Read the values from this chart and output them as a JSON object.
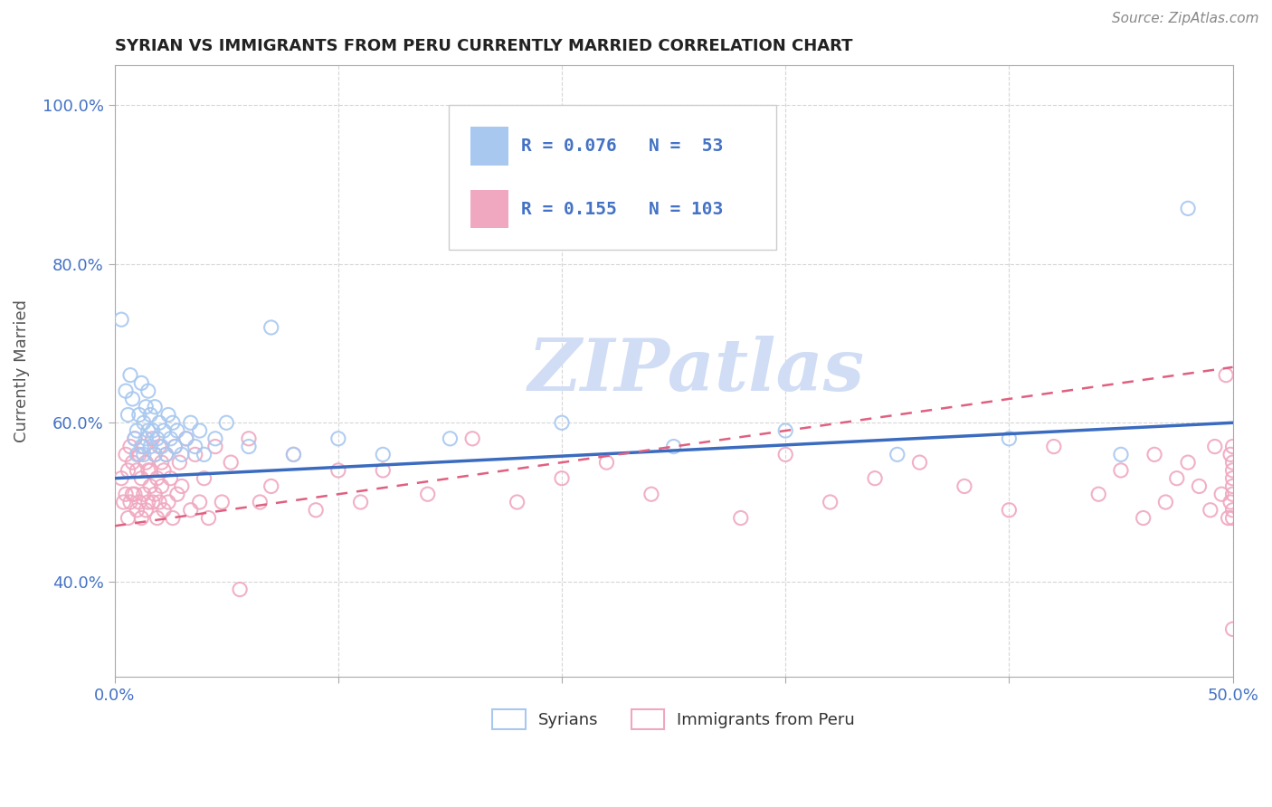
{
  "title": "SYRIAN VS IMMIGRANTS FROM PERU CURRENTLY MARRIED CORRELATION CHART",
  "source": "Source: ZipAtlas.com",
  "ylabel_label": "Currently Married",
  "xlim": [
    0.0,
    0.5
  ],
  "ylim": [
    0.28,
    1.05
  ],
  "yticks": [
    0.4,
    0.6,
    0.8,
    1.0
  ],
  "ytick_labels": [
    "40.0%",
    "60.0%",
    "80.0%",
    "100.0%"
  ],
  "xticks": [
    0.0,
    0.1,
    0.2,
    0.3,
    0.4,
    0.5
  ],
  "xtick_labels": [
    "0.0%",
    "",
    "",
    "",
    "",
    "50.0%"
  ],
  "R_syrian": 0.076,
  "N_syrian": 53,
  "R_peru": 0.155,
  "N_peru": 103,
  "color_syrian": "#a8c8f0",
  "color_peru": "#f0a8c0",
  "color_line_blue": "#3a6bbf",
  "color_line_pink": "#e06080",
  "color_text_blue": "#4472c4",
  "watermark": "ZIPatlas",
  "watermark_color": "#d0ddf5",
  "legend_label_syrian": "Syrians",
  "legend_label_peru": "Immigrants from Peru",
  "trend_blue_x0": 0.0,
  "trend_blue_y0": 0.53,
  "trend_blue_x1": 0.5,
  "trend_blue_y1": 0.6,
  "trend_pink_x0": 0.0,
  "trend_pink_y0": 0.47,
  "trend_pink_x1": 0.5,
  "trend_pink_y1": 0.67,
  "syrian_x": [
    0.003,
    0.005,
    0.006,
    0.007,
    0.008,
    0.009,
    0.01,
    0.01,
    0.011,
    0.012,
    0.012,
    0.013,
    0.013,
    0.014,
    0.014,
    0.015,
    0.015,
    0.016,
    0.016,
    0.017,
    0.018,
    0.018,
    0.019,
    0.02,
    0.021,
    0.022,
    0.023,
    0.024,
    0.025,
    0.026,
    0.027,
    0.028,
    0.03,
    0.032,
    0.034,
    0.036,
    0.038,
    0.04,
    0.045,
    0.05,
    0.06,
    0.07,
    0.08,
    0.1,
    0.12,
    0.15,
    0.2,
    0.25,
    0.3,
    0.35,
    0.4,
    0.45,
    0.48
  ],
  "syrian_y": [
    0.73,
    0.64,
    0.61,
    0.66,
    0.63,
    0.58,
    0.59,
    0.56,
    0.61,
    0.65,
    0.57,
    0.56,
    0.6,
    0.58,
    0.62,
    0.59,
    0.64,
    0.57,
    0.61,
    0.59,
    0.56,
    0.62,
    0.58,
    0.6,
    0.57,
    0.59,
    0.56,
    0.61,
    0.58,
    0.6,
    0.57,
    0.59,
    0.56,
    0.58,
    0.6,
    0.57,
    0.59,
    0.56,
    0.58,
    0.6,
    0.57,
    0.72,
    0.56,
    0.58,
    0.56,
    0.58,
    0.6,
    0.57,
    0.59,
    0.56,
    0.58,
    0.56,
    0.87
  ],
  "peru_x": [
    0.003,
    0.004,
    0.005,
    0.005,
    0.006,
    0.006,
    0.007,
    0.007,
    0.008,
    0.008,
    0.009,
    0.009,
    0.01,
    0.01,
    0.011,
    0.011,
    0.012,
    0.012,
    0.013,
    0.013,
    0.014,
    0.014,
    0.015,
    0.015,
    0.016,
    0.016,
    0.017,
    0.017,
    0.018,
    0.018,
    0.019,
    0.019,
    0.02,
    0.02,
    0.021,
    0.021,
    0.022,
    0.022,
    0.023,
    0.024,
    0.025,
    0.026,
    0.027,
    0.028,
    0.029,
    0.03,
    0.032,
    0.034,
    0.036,
    0.038,
    0.04,
    0.042,
    0.045,
    0.048,
    0.052,
    0.056,
    0.06,
    0.065,
    0.07,
    0.08,
    0.09,
    0.1,
    0.11,
    0.12,
    0.14,
    0.16,
    0.18,
    0.2,
    0.22,
    0.24,
    0.26,
    0.28,
    0.3,
    0.32,
    0.34,
    0.36,
    0.38,
    0.4,
    0.42,
    0.44,
    0.45,
    0.46,
    0.465,
    0.47,
    0.475,
    0.48,
    0.485,
    0.49,
    0.492,
    0.495,
    0.497,
    0.498,
    0.499,
    0.499,
    0.5,
    0.5,
    0.5,
    0.5,
    0.5,
    0.5,
    0.5,
    0.5,
    0.5
  ],
  "peru_y": [
    0.53,
    0.5,
    0.56,
    0.51,
    0.54,
    0.48,
    0.57,
    0.5,
    0.55,
    0.51,
    0.58,
    0.51,
    0.49,
    0.54,
    0.56,
    0.5,
    0.53,
    0.48,
    0.57,
    0.51,
    0.55,
    0.49,
    0.54,
    0.5,
    0.54,
    0.52,
    0.58,
    0.5,
    0.56,
    0.51,
    0.53,
    0.48,
    0.57,
    0.5,
    0.55,
    0.52,
    0.49,
    0.54,
    0.56,
    0.5,
    0.53,
    0.48,
    0.57,
    0.51,
    0.55,
    0.52,
    0.58,
    0.49,
    0.56,
    0.5,
    0.53,
    0.48,
    0.57,
    0.5,
    0.55,
    0.39,
    0.58,
    0.5,
    0.52,
    0.56,
    0.49,
    0.54,
    0.5,
    0.54,
    0.51,
    0.58,
    0.5,
    0.53,
    0.55,
    0.51,
    0.84,
    0.48,
    0.56,
    0.5,
    0.53,
    0.55,
    0.52,
    0.49,
    0.57,
    0.51,
    0.54,
    0.48,
    0.56,
    0.5,
    0.53,
    0.55,
    0.52,
    0.49,
    0.57,
    0.51,
    0.66,
    0.48,
    0.56,
    0.5,
    0.53,
    0.55,
    0.52,
    0.49,
    0.57,
    0.51,
    0.54,
    0.48,
    0.34
  ]
}
